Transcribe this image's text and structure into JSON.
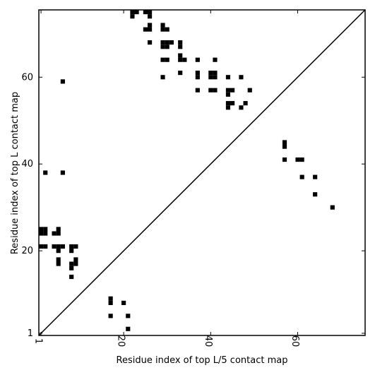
{
  "chart_data": {
    "type": "scatter",
    "xlabel": "Residue index of top L/5 contact map",
    "ylabel": "Residue index of top L contact map",
    "xlim": [
      0.5,
      75.5
    ],
    "ylim": [
      0.5,
      75.5
    ],
    "xticks": [
      1,
      20,
      40,
      60
    ],
    "yticks": [
      1,
      20,
      40,
      60
    ],
    "diagonal": true,
    "color": "#000000",
    "x": [
      1,
      1,
      2,
      2,
      2,
      6,
      6,
      1,
      2,
      4,
      5,
      5,
      4,
      5,
      6,
      5,
      5,
      5,
      8,
      9,
      8,
      8,
      8,
      9,
      9,
      8,
      17,
      17,
      17,
      20,
      21,
      21,
      22,
      23,
      22,
      25,
      26,
      26,
      25,
      26,
      26,
      26,
      29,
      29,
      30,
      29,
      30,
      31,
      29,
      30,
      29,
      30,
      29,
      33,
      33,
      33,
      33,
      34,
      33,
      37,
      37,
      37,
      37,
      40,
      41,
      40,
      41,
      41,
      40,
      41,
      44,
      44,
      45,
      44,
      47,
      49,
      44,
      45,
      44,
      47,
      48,
      57,
      57,
      57,
      60,
      61,
      61,
      64,
      64,
      68
    ],
    "y": [
      24,
      25,
      24,
      25,
      38,
      38,
      59,
      21,
      21,
      24,
      24,
      25,
      21,
      21,
      21,
      20,
      18,
      17,
      21,
      21,
      20,
      17,
      16,
      18,
      17,
      14,
      9,
      8,
      5,
      8,
      5,
      2,
      75,
      75,
      74,
      75,
      75,
      74,
      71,
      71,
      72,
      68,
      72,
      71,
      71,
      68,
      68,
      68,
      67,
      67,
      64,
      64,
      60,
      68,
      67,
      65,
      64,
      64,
      61,
      64,
      61,
      60,
      57,
      61,
      61,
      60,
      60,
      64,
      57,
      57,
      60,
      57,
      57,
      56,
      60,
      57,
      54,
      54,
      53,
      53,
      54,
      45,
      44,
      41,
      41,
      41,
      37,
      37,
      33,
      30
    ]
  }
}
